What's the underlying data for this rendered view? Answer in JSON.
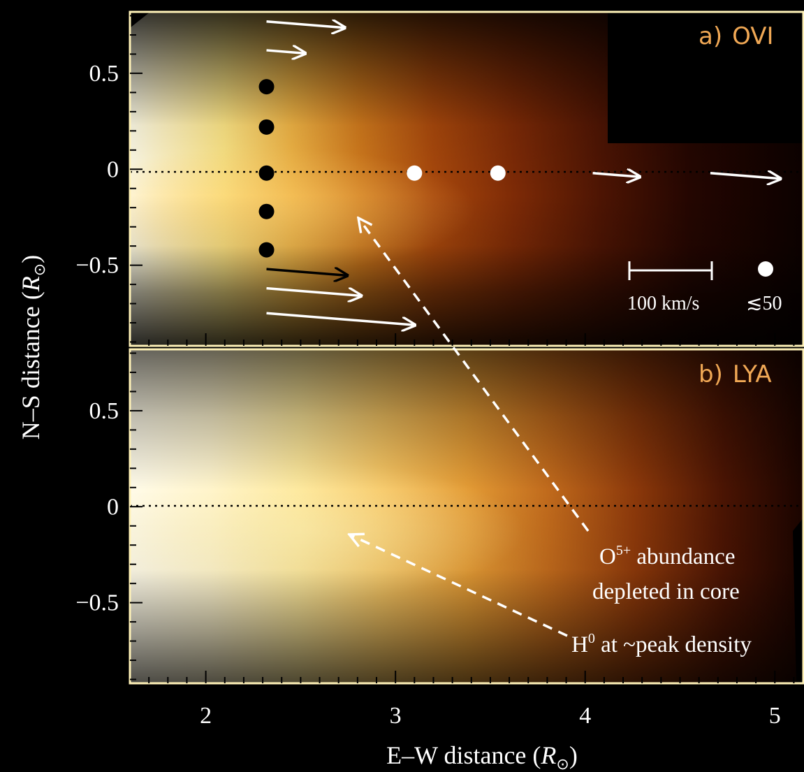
{
  "chart_data": [
    {
      "type": "heatmap",
      "panel_label": "a)",
      "line": "OVI",
      "xlim": [
        1.6,
        5.15
      ],
      "ylim": [
        -0.92,
        0.82
      ],
      "y_ticks": [
        0.5,
        0,
        -0.5
      ],
      "y_tick_labels": [
        "0.5",
        "0",
        "−0.5"
      ],
      "black_dots": [
        {
          "x": 2.32,
          "y": 0.43
        },
        {
          "x": 2.32,
          "y": 0.22
        },
        {
          "x": 2.32,
          "y": -0.02
        },
        {
          "x": 2.32,
          "y": -0.22
        },
        {
          "x": 2.32,
          "y": -0.42
        }
      ],
      "white_dots": [
        {
          "x": 3.1,
          "y": -0.02
        },
        {
          "x": 3.54,
          "y": -0.02
        }
      ],
      "velocity_arrows": [
        {
          "x": 2.32,
          "y": 0.77,
          "speed_kms": 95,
          "color": "white"
        },
        {
          "x": 2.32,
          "y": 0.62,
          "speed_kms": 47,
          "color": "white"
        },
        {
          "x": 2.32,
          "y": -0.52,
          "speed_kms": 98,
          "color": "black"
        },
        {
          "x": 2.32,
          "y": -0.62,
          "speed_kms": 115,
          "color": "white"
        },
        {
          "x": 2.32,
          "y": -0.75,
          "speed_kms": 180,
          "color": "white"
        },
        {
          "x": 4.04,
          "y": -0.02,
          "speed_kms": 57,
          "color": "white"
        },
        {
          "x": 4.66,
          "y": -0.02,
          "speed_kms": 85,
          "color": "white"
        }
      ],
      "legend": {
        "scale_label": "100 km/s",
        "dot_label": "≲50"
      }
    },
    {
      "type": "heatmap",
      "panel_label": "b)",
      "line": "LYA",
      "xlim": [
        1.6,
        5.15
      ],
      "ylim": [
        -0.92,
        0.82
      ],
      "y_ticks": [
        0.5,
        0,
        -0.5
      ],
      "y_tick_labels": [
        "0.5",
        "0",
        "−0.5"
      ]
    }
  ],
  "x_ticks": [
    2,
    3,
    4,
    5
  ],
  "x_tick_labels": [
    "2",
    "3",
    "4",
    "5"
  ],
  "xlabel": "E–W distance (",
  "xlabel_sym": "R",
  "ylabel": "N–S distance (",
  "ylabel_sym": "R",
  "annotations": {
    "o5": {
      "prefix": "O",
      "sup": "5+",
      "rest": " abundance",
      "line2": "depleted in core"
    },
    "h0": {
      "prefix": "H",
      "sup": "0",
      "rest": " at ~peak density"
    }
  },
  "colors": {
    "background": "#000000",
    "frame": "#fff2b8",
    "colormap": [
      "#000000",
      "#2a0700",
      "#7a2a06",
      "#b85d12",
      "#e69a30",
      "#fbd565",
      "#fff8d8"
    ]
  }
}
